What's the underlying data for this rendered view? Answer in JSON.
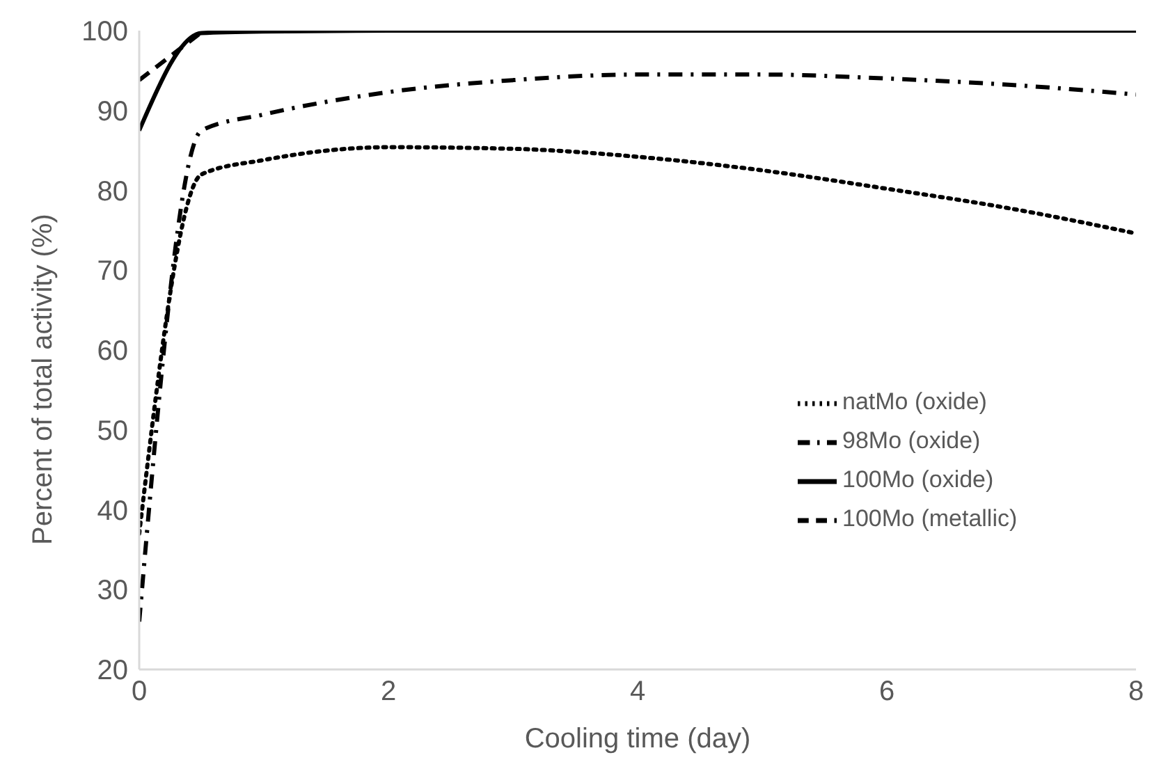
{
  "chart_data": {
    "type": "line",
    "xlabel": "Cooling time (day)",
    "ylabel": "Percent of total activity (%)",
    "x": [
      0,
      0.5,
      1,
      2,
      3,
      4,
      5,
      6,
      7,
      8
    ],
    "series": [
      {
        "name": "natMo (oxide)",
        "color": "#000000",
        "line_style": "dotted",
        "values": [
          37,
          82,
          83.8,
          85.4,
          85.2,
          84.2,
          82.5,
          80.2,
          77.7,
          74.6
        ]
      },
      {
        "name": "98Mo (oxide)",
        "color": "#000000",
        "line_style": "dashdot",
        "values": [
          26,
          87.5,
          89.5,
          92.3,
          93.8,
          94.5,
          94.5,
          94,
          93.2,
          92
        ]
      },
      {
        "name": "100Mo (oxide)",
        "color": "#000000",
        "line_style": "solid",
        "values": [
          87.5,
          99.7,
          99.9,
          100,
          100,
          100,
          100,
          100,
          100,
          100
        ]
      },
      {
        "name": "100Mo (metallic)",
        "color": "#000000",
        "line_style": "dashed",
        "values": [
          93.8,
          99.8,
          null,
          null,
          null,
          null,
          null,
          null,
          null,
          null
        ]
      }
    ],
    "xlim": [
      0,
      8
    ],
    "xticks": [
      0,
      2,
      4,
      6,
      8
    ],
    "ylim": [
      20,
      100
    ],
    "yticks": [
      20,
      30,
      40,
      50,
      60,
      70,
      80,
      90,
      100
    ],
    "grid": false,
    "legend": "right",
    "marker": "none"
  }
}
